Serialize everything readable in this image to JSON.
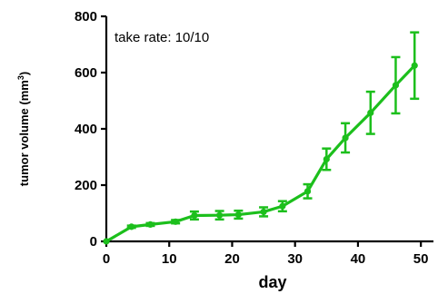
{
  "chart_data": {
    "type": "line",
    "title": "",
    "xlabel": "day",
    "ylabel": "tumor volume (mm",
    "ylabel_superscript": "3",
    "ylabel_suffix": ")",
    "annotation": "take rate: 10/10",
    "xlim": [
      0,
      52
    ],
    "ylim": [
      0,
      800
    ],
    "x_ticks": [
      0,
      10,
      20,
      30,
      40,
      50
    ],
    "y_ticks": [
      0,
      200,
      400,
      600,
      800
    ],
    "grid": false,
    "color": "#1cbf1c",
    "series": [
      {
        "x": [
          0,
          4,
          7,
          11,
          14,
          18,
          21,
          25,
          28,
          32,
          35,
          38,
          42,
          46,
          49
        ],
        "y": [
          0,
          52,
          60,
          70,
          92,
          93,
          95,
          105,
          125,
          178,
          292,
          368,
          457,
          555,
          625
        ],
        "error": [
          0,
          4,
          5,
          6,
          14,
          15,
          14,
          16,
          18,
          25,
          38,
          52,
          75,
          100,
          118
        ]
      }
    ]
  }
}
